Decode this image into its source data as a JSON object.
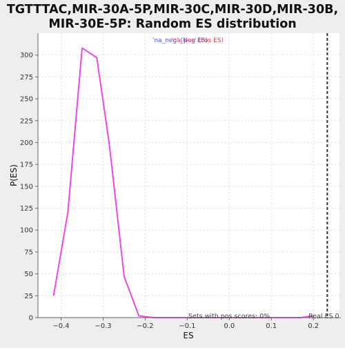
{
  "chart_data": {
    "type": "line",
    "title_lines": [
      "TGTTTAC,MIR-30A-5P,MIR-30C,MIR-30D,MIR-30B,",
      "MIR-30E-5P: Random ES distribution"
    ],
    "xlabel": "ES",
    "ylabel": "P(ES)",
    "xlim": [
      -0.455,
      0.262
    ],
    "ylim": [
      0,
      325
    ],
    "x_ticks": [
      -0.4,
      -0.3,
      -0.2,
      -0.1,
      0.0,
      0.1,
      0.2
    ],
    "x_tick_labels": [
      "−0.4",
      "−0.3",
      "−0.2",
      "−0.1",
      "0.0",
      "0.1",
      "0.2"
    ],
    "y_ticks": [
      0,
      25,
      50,
      75,
      100,
      125,
      150,
      175,
      200,
      225,
      250,
      275,
      300
    ],
    "grid": true,
    "series": [
      {
        "color": "#ee44ee",
        "x": [
          -0.418,
          -0.384,
          -0.35,
          -0.315,
          -0.285,
          -0.25,
          -0.215,
          -0.18,
          -0.145,
          -0.11,
          -0.075,
          -0.04,
          -0.005,
          0.03,
          0.065,
          0.1,
          0.135,
          0.17,
          0.2
        ],
        "y": [
          25,
          120,
          308,
          297,
          197,
          47,
          2,
          0,
          0,
          0,
          0,
          0,
          0,
          0,
          0,
          0,
          0,
          0,
          2
        ]
      }
    ],
    "real_es": {
      "x": 0.233,
      "color": "#333333",
      "label": "Real ES 0."
    },
    "legend": {
      "placement": "top-center",
      "entries": [
        {
          "text": "'na_neg' (Neg ES)",
          "color": "#5555dd"
        },
        {
          "text": "'na_pos' (Pos ES)",
          "color": "#dd4444"
        }
      ]
    },
    "annotation": "Sets with pos scores: 0%"
  }
}
